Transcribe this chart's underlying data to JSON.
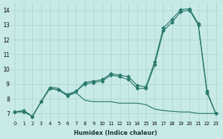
{
  "bg_color": "#c8eae6",
  "grid_color": "#b0d8d4",
  "line_color": "#2a7a6e",
  "xlabel": "Humidex (Indice chaleur)",
  "ylim": [
    6.5,
    14.5
  ],
  "xlim": [
    -0.5,
    23.5
  ],
  "yticks": [
    7,
    8,
    9,
    10,
    11,
    12,
    13,
    14
  ],
  "xticks": [
    0,
    1,
    2,
    3,
    4,
    5,
    6,
    7,
    8,
    9,
    10,
    11,
    12,
    13,
    14,
    15,
    16,
    17,
    18,
    19,
    20,
    21,
    22,
    23
  ],
  "series1_x": [
    0,
    1,
    2,
    3,
    4,
    5,
    6,
    7,
    8,
    9,
    10,
    11,
    12,
    13,
    14,
    15,
    16,
    17,
    18,
    19,
    20,
    21,
    22,
    23
  ],
  "series1_y": [
    7.1,
    7.2,
    6.8,
    7.8,
    8.7,
    8.6,
    8.2,
    8.5,
    9.0,
    9.1,
    9.2,
    9.6,
    9.5,
    9.3,
    8.7,
    8.7,
    10.3,
    12.6,
    13.2,
    13.9,
    14.0,
    13.0,
    8.4,
    7.0
  ],
  "series2_x": [
    0,
    1,
    2,
    3,
    4,
    5,
    6,
    7,
    8,
    9,
    10,
    11,
    12,
    13,
    14,
    15,
    16,
    17,
    18,
    19,
    20,
    21,
    22,
    23
  ],
  "series2_y": [
    7.1,
    7.1,
    6.8,
    7.8,
    8.7,
    8.6,
    8.3,
    8.5,
    9.1,
    9.2,
    9.3,
    9.7,
    9.6,
    9.5,
    8.9,
    8.8,
    10.5,
    12.8,
    13.4,
    14.05,
    14.1,
    13.1,
    8.5,
    7.0
  ],
  "series3_x": [
    0,
    1,
    2,
    3,
    4,
    5,
    6,
    7,
    8,
    9,
    10,
    11,
    12,
    13,
    14,
    15,
    16,
    17,
    18,
    19,
    20,
    21,
    22,
    23
  ],
  "series3_y": [
    7.1,
    7.2,
    6.8,
    7.8,
    8.8,
    8.7,
    8.2,
    8.4,
    7.9,
    7.8,
    7.8,
    7.8,
    7.7,
    7.7,
    7.7,
    7.6,
    7.3,
    7.2,
    7.15,
    7.1,
    7.1,
    7.0,
    7.0,
    7.0
  ]
}
